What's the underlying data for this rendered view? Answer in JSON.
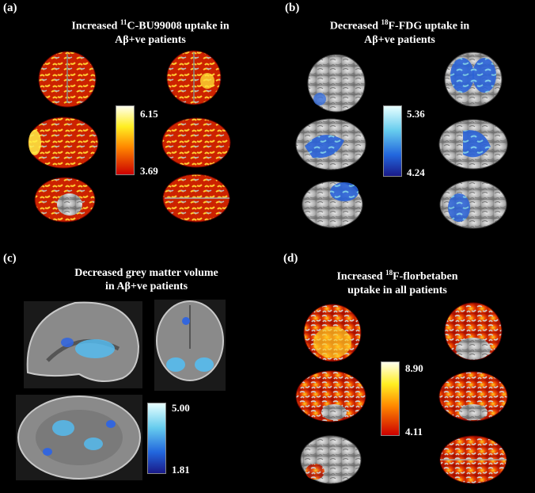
{
  "panels": {
    "a": {
      "label": "(a)",
      "title_line1_pre": "Increased ",
      "title_line1_sup": "11",
      "title_line1_post": "C-BU99008 uptake in",
      "title_line2": "Aβ+ve patients",
      "cbar_max": "6.15",
      "cbar_min": "3.69",
      "colors": [
        "#ffffee",
        "#ffee22",
        "#ff8800",
        "#cc0000"
      ]
    },
    "b": {
      "label": "(b)",
      "title_line1_pre": "Decreased ",
      "title_line1_sup": "18",
      "title_line1_post": "F-FDG uptake in",
      "title_line2": "Aβ+ve patients",
      "cbar_max": "5.36",
      "cbar_min": "4.24",
      "colors": [
        "#e8ffff",
        "#66ccee",
        "#2266dd",
        "#1a1a88"
      ]
    },
    "c": {
      "label": "(c)",
      "title_line1": "Decreased grey matter volume",
      "title_line2": "in Aβ+ve patients",
      "cbar_max": "5.00",
      "cbar_min": "1.81",
      "colors": [
        "#e8ffff",
        "#66ccee",
        "#2266dd",
        "#1a1a88"
      ]
    },
    "d": {
      "label": "(d)",
      "title_line1_pre": "Increased ",
      "title_line1_sup": "18",
      "title_line1_post": "F-florbetaben",
      "title_line2": "uptake in all patients",
      "cbar_max": "8.90",
      "cbar_min": "4.11",
      "colors": [
        "#ffffee",
        "#ffee22",
        "#ff8800",
        "#cc0000"
      ]
    }
  }
}
